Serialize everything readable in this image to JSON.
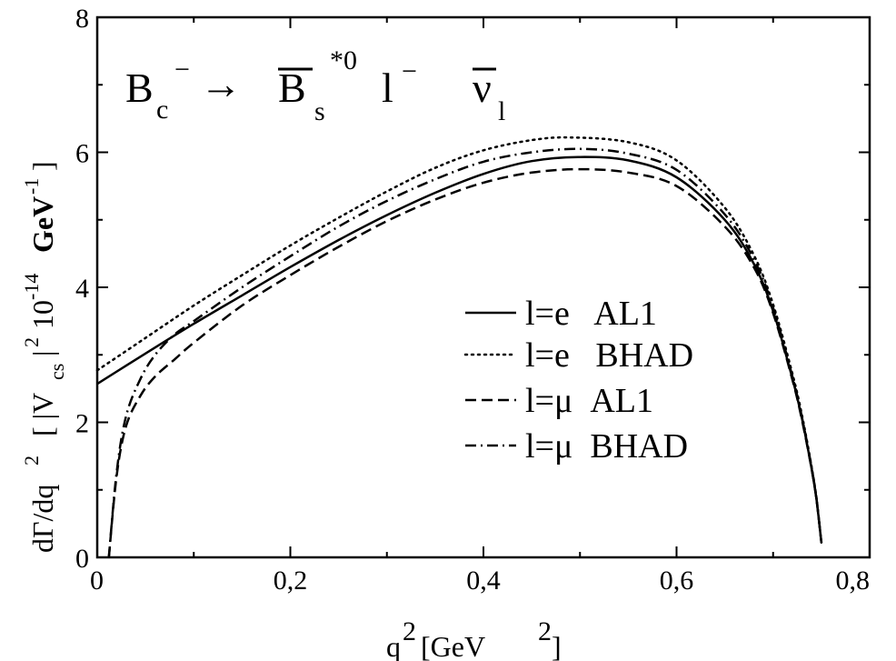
{
  "chart_data": {
    "type": "line",
    "title": {
      "B": "B",
      "c_sub": "c",
      "minus_sup": "−",
      "arrow": "→",
      "Bbar": "B",
      "s_sub": "s",
      "star0_sup": "*0",
      "l": "l",
      "l_minus_sup": "−",
      "nu": "ν",
      "l_sub": "l"
    },
    "xlabel": {
      "q": "q",
      "sup": "2",
      "bracket_open": "[GeV",
      "unit_sup": "2",
      "bracket_close": "]"
    },
    "ylabel": {
      "text1": "dΓ/dq",
      "sup1": "2",
      "text2": "[ |V",
      "sub_cs": "cs",
      "text3": "|",
      "sup2": "2",
      "text4": "10",
      "sup3": "-14",
      "text5": "GeV",
      "sup4": "-1",
      "text6": "]"
    },
    "xlim": [
      0,
      0.8
    ],
    "ylim": [
      0,
      8
    ],
    "x_ticks": [
      {
        "value": 0,
        "label": "0"
      },
      {
        "value": 0.2,
        "label": "0,2"
      },
      {
        "value": 0.4,
        "label": "0,4"
      },
      {
        "value": 0.6,
        "label": "0,6"
      },
      {
        "value": 0.8,
        "label": "0,8"
      }
    ],
    "y_ticks": [
      {
        "value": 0,
        "label": "0"
      },
      {
        "value": 2,
        "label": "2"
      },
      {
        "value": 4,
        "label": "4"
      },
      {
        "value": 6,
        "label": "6"
      },
      {
        "value": 8,
        "label": "8"
      }
    ],
    "grid": false,
    "legend_position": "right-center",
    "series": [
      {
        "name": "l=e   AL1",
        "dash": "solid",
        "x": [
          0.0,
          0.05,
          0.1,
          0.15,
          0.2,
          0.25,
          0.3,
          0.35,
          0.4,
          0.45,
          0.5,
          0.55,
          0.6,
          0.65,
          0.68,
          0.7,
          0.72,
          0.73,
          0.74,
          0.745,
          0.75
        ],
        "y": [
          2.57,
          3.02,
          3.46,
          3.88,
          4.3,
          4.7,
          5.07,
          5.4,
          5.68,
          5.87,
          5.93,
          5.88,
          5.63,
          5.0,
          4.35,
          3.65,
          2.65,
          2.05,
          1.3,
          0.85,
          0.22
        ]
      },
      {
        "name": "l=e   BHAD",
        "dash": "dotted",
        "x": [
          0.0,
          0.05,
          0.1,
          0.15,
          0.2,
          0.25,
          0.3,
          0.35,
          0.4,
          0.45,
          0.49,
          0.55,
          0.6,
          0.65,
          0.68,
          0.7,
          0.72,
          0.73,
          0.74,
          0.745,
          0.75
        ],
        "y": [
          2.77,
          3.25,
          3.73,
          4.18,
          4.62,
          5.03,
          5.42,
          5.77,
          6.03,
          6.18,
          6.22,
          6.15,
          5.88,
          5.18,
          4.48,
          3.75,
          2.72,
          2.1,
          1.33,
          0.87,
          0.22
        ]
      },
      {
        "name": "l=μ  AL1",
        "dash": "dashed",
        "x": [
          0.012,
          0.02,
          0.03,
          0.045,
          0.06,
          0.08,
          0.1,
          0.15,
          0.2,
          0.25,
          0.3,
          0.35,
          0.4,
          0.45,
          0.5,
          0.55,
          0.6,
          0.65,
          0.68,
          0.7,
          0.72,
          0.73,
          0.74,
          0.745,
          0.75
        ],
        "y": [
          0.0,
          1.2,
          1.95,
          2.4,
          2.68,
          2.93,
          3.18,
          3.73,
          4.18,
          4.6,
          4.98,
          5.3,
          5.55,
          5.7,
          5.75,
          5.7,
          5.5,
          4.9,
          4.3,
          3.62,
          2.63,
          2.03,
          1.3,
          0.85,
          0.22
        ]
      },
      {
        "name": "l=μ  BHAD",
        "dash": "dashdot",
        "x": [
          0.012,
          0.02,
          0.03,
          0.045,
          0.06,
          0.08,
          0.1,
          0.15,
          0.2,
          0.25,
          0.3,
          0.35,
          0.4,
          0.45,
          0.5,
          0.55,
          0.6,
          0.65,
          0.68,
          0.7,
          0.72,
          0.73,
          0.74,
          0.745,
          0.75
        ],
        "y": [
          0.0,
          1.25,
          2.1,
          2.65,
          3.0,
          3.3,
          3.5,
          4.0,
          4.46,
          4.9,
          5.28,
          5.6,
          5.86,
          6.0,
          6.05,
          5.98,
          5.74,
          5.08,
          4.42,
          3.7,
          2.68,
          2.07,
          1.32,
          0.86,
          0.22
        ]
      }
    ]
  }
}
